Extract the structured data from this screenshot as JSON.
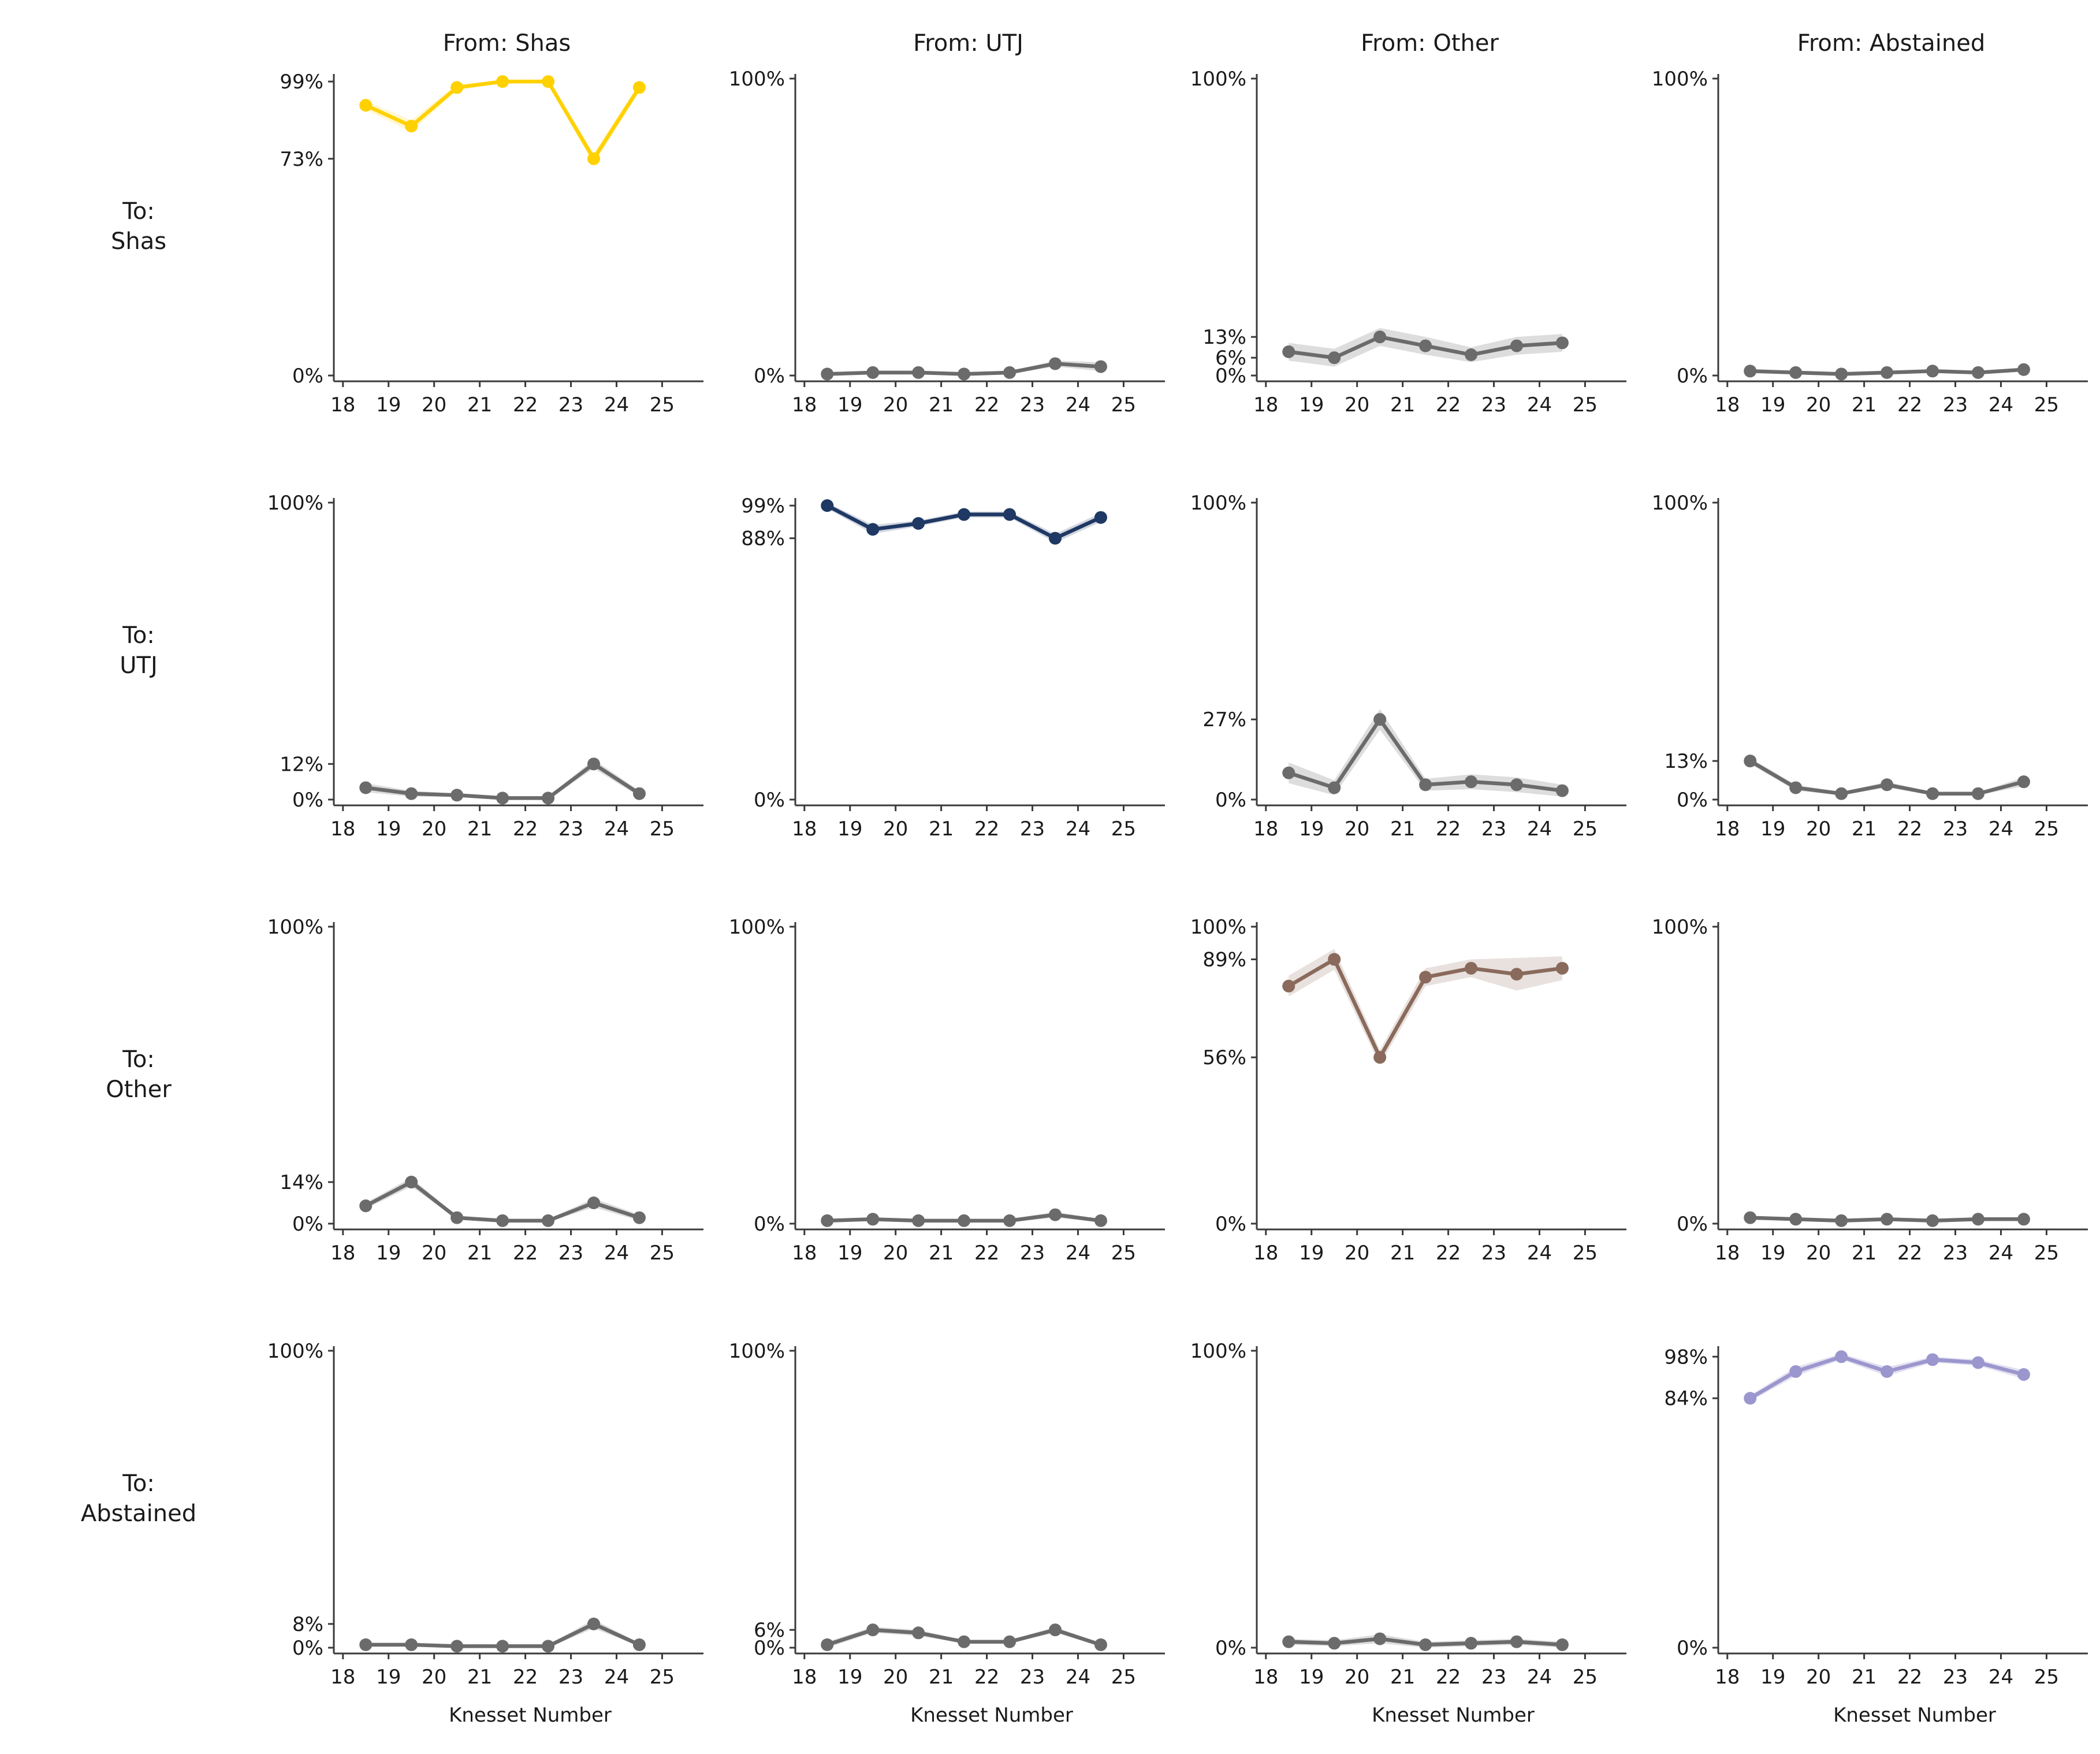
{
  "figure": {
    "col_titles": [
      "From: Shas",
      "From: UTJ",
      "From: Other",
      "From: Abstained"
    ],
    "row_labels": [
      [
        "To:",
        "Shas"
      ],
      [
        "To:",
        "UTJ"
      ],
      [
        "To:",
        "Other"
      ],
      [
        "To:",
        "Abstained"
      ]
    ],
    "xlabel": "Knesset Number",
    "x_ticks": [
      "18",
      "19",
      "20",
      "21",
      "22",
      "23",
      "24",
      "25"
    ],
    "colors": {
      "shas": "#FFD100",
      "utj": "#1F3864",
      "other": "#8A6A5C",
      "abstained": "#9C96CE",
      "gray_series": "#6B6B6B",
      "axis": "#3A3A3A",
      "text": "#1A1A1A"
    }
  },
  "chart_data": [
    {
      "name": "shas-to-shas",
      "type": "line",
      "from": "Shas",
      "to": "Shas",
      "color": "#FFD100",
      "band_color": "rgba(255,209,0,0.18)",
      "x": [
        18.5,
        19.5,
        20.5,
        21.5,
        22.5,
        23.5,
        24.5
      ],
      "values": [
        91,
        84,
        97,
        99,
        99,
        73,
        97
      ],
      "band_halfwidth": [
        1.5,
        2,
        1,
        0.5,
        0.5,
        2,
        1.5
      ],
      "yticks": [
        {
          "value": 99,
          "label": "99%"
        },
        {
          "value": 73,
          "label": "73%"
        },
        {
          "value": 0,
          "label": "0%"
        }
      ],
      "ylim": [
        0,
        100
      ],
      "show_xlabel": false
    },
    {
      "name": "utj-to-shas",
      "type": "line",
      "from": "UTJ",
      "to": "Shas",
      "color": "#6B6B6B",
      "band_color": "rgba(120,120,120,0.25)",
      "x": [
        18.5,
        19.5,
        20.5,
        21.5,
        22.5,
        23.5,
        24.5
      ],
      "values": [
        0.5,
        1,
        1,
        0.5,
        1,
        4,
        3
      ],
      "band_halfwidth": [
        0.5,
        0.5,
        0.5,
        0.5,
        0.5,
        1,
        1.5
      ],
      "yticks": [
        {
          "value": 100,
          "label": "100%"
        },
        {
          "value": 0,
          "label": "0%"
        }
      ],
      "ylim": [
        0,
        100
      ],
      "show_xlabel": false
    },
    {
      "name": "other-to-shas",
      "type": "line",
      "from": "Other",
      "to": "Shas",
      "color": "#6B6B6B",
      "band_color": "rgba(120,120,120,0.25)",
      "x": [
        18.5,
        19.5,
        20.5,
        21.5,
        22.5,
        23.5,
        24.5
      ],
      "values": [
        8,
        6,
        13,
        10,
        7,
        10,
        11
      ],
      "band_halfwidth": [
        3,
        3,
        3,
        3,
        2.5,
        3,
        3
      ],
      "yticks": [
        {
          "value": 100,
          "label": "100%"
        },
        {
          "value": 13,
          "label": "13%"
        },
        {
          "value": 6,
          "label": "6%"
        },
        {
          "value": 0,
          "label": "0%"
        }
      ],
      "ylim": [
        0,
        100
      ],
      "show_xlabel": false
    },
    {
      "name": "abstained-to-shas",
      "type": "line",
      "from": "Abstained",
      "to": "Shas",
      "color": "#6B6B6B",
      "band_color": "rgba(120,120,120,0.25)",
      "x": [
        18.5,
        19.5,
        20.5,
        21.5,
        22.5,
        23.5,
        24.5
      ],
      "values": [
        1.5,
        1,
        0.5,
        1,
        1.5,
        1,
        2
      ],
      "band_halfwidth": [
        0.5,
        0.5,
        0.5,
        0.5,
        0.5,
        0.5,
        0.5
      ],
      "yticks": [
        {
          "value": 100,
          "label": "100%"
        },
        {
          "value": 0,
          "label": "0%"
        }
      ],
      "ylim": [
        0,
        100
      ],
      "show_xlabel": false
    },
    {
      "name": "shas-to-utj",
      "type": "line",
      "from": "Shas",
      "to": "UTJ",
      "color": "#6B6B6B",
      "band_color": "rgba(120,120,120,0.25)",
      "x": [
        18.5,
        19.5,
        20.5,
        21.5,
        22.5,
        23.5,
        24.5
      ],
      "values": [
        4,
        2,
        1.5,
        0.5,
        0.5,
        12,
        2
      ],
      "band_halfwidth": [
        1.5,
        1,
        0.5,
        0.5,
        0.5,
        1.5,
        1
      ],
      "yticks": [
        {
          "value": 100,
          "label": "100%"
        },
        {
          "value": 12,
          "label": "12%"
        },
        {
          "value": 0,
          "label": "0%"
        }
      ],
      "ylim": [
        0,
        100
      ],
      "show_xlabel": false
    },
    {
      "name": "utj-to-utj",
      "type": "line",
      "from": "UTJ",
      "to": "UTJ",
      "color": "#1F3864",
      "band_color": "rgba(31,56,100,0.2)",
      "x": [
        18.5,
        19.5,
        20.5,
        21.5,
        22.5,
        23.5,
        24.5
      ],
      "values": [
        99,
        91,
        93,
        96,
        96,
        88,
        95
      ],
      "band_halfwidth": [
        1,
        1.5,
        1,
        1,
        1,
        1.5,
        1.5
      ],
      "yticks": [
        {
          "value": 99,
          "label": "99%"
        },
        {
          "value": 88,
          "label": "88%"
        },
        {
          "value": 0,
          "label": "0%"
        }
      ],
      "ylim": [
        0,
        100
      ],
      "show_xlabel": false
    },
    {
      "name": "other-to-utj",
      "type": "line",
      "from": "Other",
      "to": "UTJ",
      "color": "#6B6B6B",
      "band_color": "rgba(120,120,120,0.25)",
      "x": [
        18.5,
        19.5,
        20.5,
        21.5,
        22.5,
        23.5,
        24.5
      ],
      "values": [
        9,
        4,
        27,
        5,
        6,
        5,
        3
      ],
      "band_halfwidth": [
        3.5,
        2.5,
        3.5,
        2,
        2.5,
        2.5,
        2
      ],
      "yticks": [
        {
          "value": 100,
          "label": "100%"
        },
        {
          "value": 27,
          "label": "27%"
        },
        {
          "value": 0,
          "label": "0%"
        }
      ],
      "ylim": [
        0,
        100
      ],
      "show_xlabel": false
    },
    {
      "name": "abstained-to-utj",
      "type": "line",
      "from": "Abstained",
      "to": "UTJ",
      "color": "#6B6B6B",
      "band_color": "rgba(120,120,120,0.25)",
      "x": [
        18.5,
        19.5,
        20.5,
        21.5,
        22.5,
        23.5,
        24.5
      ],
      "values": [
        13,
        4,
        2,
        5,
        2,
        2,
        6
      ],
      "band_halfwidth": [
        1,
        1,
        0.5,
        1,
        0.5,
        0.5,
        1.5
      ],
      "yticks": [
        {
          "value": 100,
          "label": "100%"
        },
        {
          "value": 13,
          "label": "13%"
        },
        {
          "value": 0,
          "label": "0%"
        }
      ],
      "ylim": [
        0,
        100
      ],
      "show_xlabel": false
    },
    {
      "name": "shas-to-other",
      "type": "line",
      "from": "Shas",
      "to": "Other",
      "color": "#6B6B6B",
      "band_color": "rgba(120,120,120,0.25)",
      "x": [
        18.5,
        19.5,
        20.5,
        21.5,
        22.5,
        23.5,
        24.5
      ],
      "values": [
        6,
        14,
        2,
        1,
        1,
        7,
        2
      ],
      "band_halfwidth": [
        1,
        1.5,
        0.5,
        0.5,
        0.5,
        1.5,
        1
      ],
      "yticks": [
        {
          "value": 100,
          "label": "100%"
        },
        {
          "value": 14,
          "label": "14%"
        },
        {
          "value": 0,
          "label": "0%"
        }
      ],
      "ylim": [
        0,
        100
      ],
      "show_xlabel": false
    },
    {
      "name": "utj-to-other",
      "type": "line",
      "from": "UTJ",
      "to": "Other",
      "color": "#6B6B6B",
      "band_color": "rgba(120,120,120,0.25)",
      "x": [
        18.5,
        19.5,
        20.5,
        21.5,
        22.5,
        23.5,
        24.5
      ],
      "values": [
        1,
        1.5,
        1,
        1,
        1,
        3,
        1
      ],
      "band_halfwidth": [
        0.5,
        0.5,
        0.5,
        0.5,
        0.5,
        1,
        0.5
      ],
      "yticks": [
        {
          "value": 100,
          "label": "100%"
        },
        {
          "value": 0,
          "label": "0%"
        }
      ],
      "ylim": [
        0,
        100
      ],
      "show_xlabel": false
    },
    {
      "name": "other-to-other",
      "type": "line",
      "from": "Other",
      "to": "Other",
      "color": "#8A6A5C",
      "band_color": "rgba(138,106,92,0.2)",
      "x": [
        18.5,
        19.5,
        20.5,
        21.5,
        22.5,
        23.5,
        24.5
      ],
      "values": [
        80,
        89,
        56,
        83,
        86,
        84,
        86
      ],
      "band_halfwidth": [
        3.5,
        3.5,
        2.5,
        3,
        3,
        5.5,
        4
      ],
      "yticks": [
        {
          "value": 100,
          "label": "100%"
        },
        {
          "value": 89,
          "label": "89%"
        },
        {
          "value": 56,
          "label": "56%"
        },
        {
          "value": 0,
          "label": "0%"
        }
      ],
      "ylim": [
        0,
        100
      ],
      "show_xlabel": false
    },
    {
      "name": "abstained-to-other",
      "type": "line",
      "from": "Abstained",
      "to": "Other",
      "color": "#6B6B6B",
      "band_color": "rgba(120,120,120,0.25)",
      "x": [
        18.5,
        19.5,
        20.5,
        21.5,
        22.5,
        23.5,
        24.5
      ],
      "values": [
        2,
        1.5,
        1,
        1.5,
        1,
        1.5,
        1.5
      ],
      "band_halfwidth": [
        0.5,
        0.5,
        0.5,
        0.5,
        0.5,
        0.5,
        0.5
      ],
      "yticks": [
        {
          "value": 100,
          "label": "100%"
        },
        {
          "value": 0,
          "label": "0%"
        }
      ],
      "ylim": [
        0,
        100
      ],
      "show_xlabel": false
    },
    {
      "name": "shas-to-abstained",
      "type": "line",
      "from": "Shas",
      "to": "Abstained",
      "color": "#6B6B6B",
      "band_color": "rgba(120,120,120,0.25)",
      "x": [
        18.5,
        19.5,
        20.5,
        21.5,
        22.5,
        23.5,
        24.5
      ],
      "values": [
        1,
        1,
        0.5,
        0.5,
        0.5,
        8,
        1
      ],
      "band_halfwidth": [
        0.5,
        0.5,
        0.5,
        0.5,
        0.5,
        1.5,
        0.5
      ],
      "yticks": [
        {
          "value": 100,
          "label": "100%"
        },
        {
          "value": 8,
          "label": "8%"
        },
        {
          "value": 0,
          "label": "0%"
        }
      ],
      "ylim": [
        0,
        100
      ],
      "show_xlabel": true
    },
    {
      "name": "utj-to-abstained",
      "type": "line",
      "from": "UTJ",
      "to": "Abstained",
      "color": "#6B6B6B",
      "band_color": "rgba(120,120,120,0.25)",
      "x": [
        18.5,
        19.5,
        20.5,
        21.5,
        22.5,
        23.5,
        24.5
      ],
      "values": [
        1,
        6,
        5,
        2,
        2,
        6,
        1
      ],
      "band_halfwidth": [
        1,
        1,
        1,
        0.5,
        0.5,
        1,
        0.5
      ],
      "yticks": [
        {
          "value": 100,
          "label": "100%"
        },
        {
          "value": 6,
          "label": "6%"
        },
        {
          "value": 0,
          "label": "0%"
        }
      ],
      "ylim": [
        0,
        100
      ],
      "show_xlabel": true
    },
    {
      "name": "other-to-abstained",
      "type": "line",
      "from": "Other",
      "to": "Abstained",
      "color": "#6B6B6B",
      "band_color": "rgba(120,120,120,0.25)",
      "x": [
        18.5,
        19.5,
        20.5,
        21.5,
        22.5,
        23.5,
        24.5
      ],
      "values": [
        2,
        1.5,
        3,
        1,
        1.5,
        2,
        1
      ],
      "band_halfwidth": [
        1,
        1,
        1.5,
        1,
        1,
        1,
        1
      ],
      "yticks": [
        {
          "value": 100,
          "label": "100%"
        },
        {
          "value": 0,
          "label": "0%"
        }
      ],
      "ylim": [
        0,
        100
      ],
      "show_xlabel": true
    },
    {
      "name": "abstained-to-abstained",
      "type": "line",
      "from": "Abstained",
      "to": "Abstained",
      "color": "#9C96CE",
      "band_color": "rgba(156,150,206,0.3)",
      "x": [
        18.5,
        19.5,
        20.5,
        21.5,
        22.5,
        23.5,
        24.5
      ],
      "values": [
        84,
        93,
        98,
        93,
        97,
        96,
        92
      ],
      "band_halfwidth": [
        1,
        1.5,
        1,
        1.5,
        1,
        1,
        1.5
      ],
      "yticks": [
        {
          "value": 98,
          "label": "98%"
        },
        {
          "value": 84,
          "label": "84%"
        },
        {
          "value": 0,
          "label": "0%"
        }
      ],
      "ylim": [
        0,
        100
      ],
      "show_xlabel": true
    }
  ]
}
